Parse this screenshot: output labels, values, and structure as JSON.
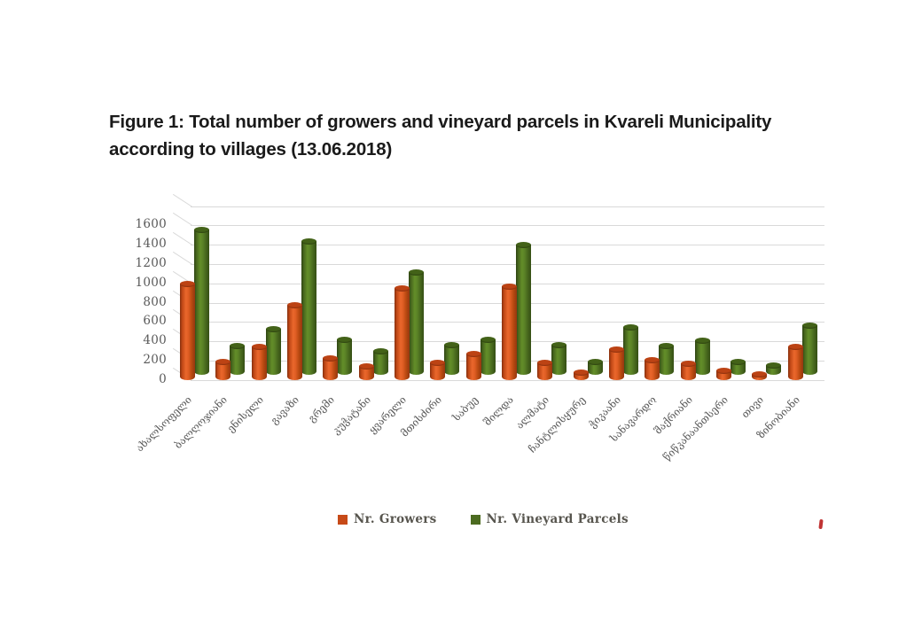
{
  "title": {
    "text": "Figure 1: Total number of growers and vineyard parcels in Kvareli Municipality according to villages (13.06.2018)"
  },
  "chart_data": {
    "type": "bar",
    "style": "3d-cylinder",
    "categories": [
      "ახალსოფელი",
      "ბალღოჯიანი",
      "ენისელი",
      "გავაზი",
      "გრემი",
      "კუჭატანი",
      "ყვარელი",
      "მთისძირი",
      "საბუე",
      "შილდა",
      "ალმატი",
      "ჩანტლისყურე",
      "ჭიკაანი",
      "სანავარდო",
      "შაქრიანი",
      "წიწკანაანთსერი",
      "თივი",
      "ზინობიანი"
    ],
    "series": [
      {
        "name": "Nr. Growers",
        "color": "#c74a18",
        "values": [
          1000,
          190,
          350,
          780,
          230,
          150,
          950,
          180,
          270,
          970,
          180,
          80,
          320,
          210,
          175,
          100,
          60,
          350
        ]
      },
      {
        "name": "Nr. Vineyard Parcels",
        "color": "#4c6b20",
        "values": [
          1550,
          360,
          530,
          1440,
          420,
          300,
          1120,
          370,
          420,
          1400,
          370,
          190,
          550,
          360,
          410,
          190,
          160,
          570
        ]
      }
    ],
    "xlabel": "",
    "ylabel": "",
    "ylim": [
      0,
      1600
    ],
    "yticks": [
      0,
      200,
      400,
      600,
      800,
      1000,
      1200,
      1400,
      1600
    ],
    "grid": true,
    "legend_position": "bottom"
  },
  "colors": {
    "grid": "#d9d9d9",
    "axis_text": "#595959",
    "legend_text": "#57554e",
    "title_text": "#1a1a1a",
    "stray_mark": "#b00000"
  }
}
